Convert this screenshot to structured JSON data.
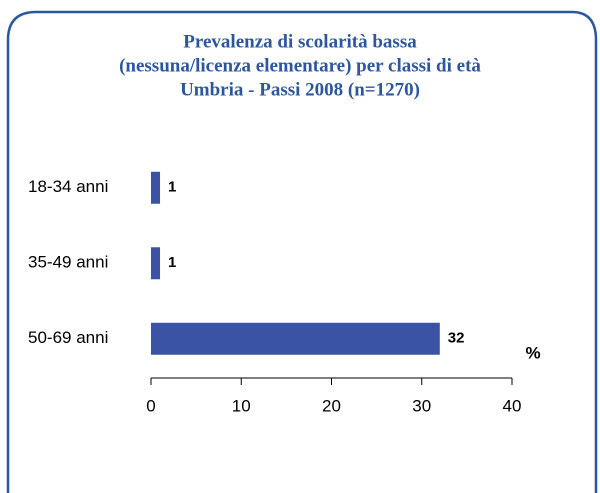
{
  "chart_data": {
    "type": "bar",
    "orientation": "horizontal",
    "title": [
      "Prevalenza di scolarità bassa",
      "(nessuna/licenza elementare) per classi di età",
      "Umbria - Passi 2008 (n=1270)"
    ],
    "categories": [
      "18-34 anni",
      "35-49 anni",
      "50-69 anni"
    ],
    "values": [
      1,
      1,
      32
    ],
    "color": "#3a53a4",
    "x_label": "%",
    "xlim": [
      0,
      40
    ],
    "xticks": [
      0,
      10,
      20,
      30,
      40
    ],
    "grid": false
  }
}
